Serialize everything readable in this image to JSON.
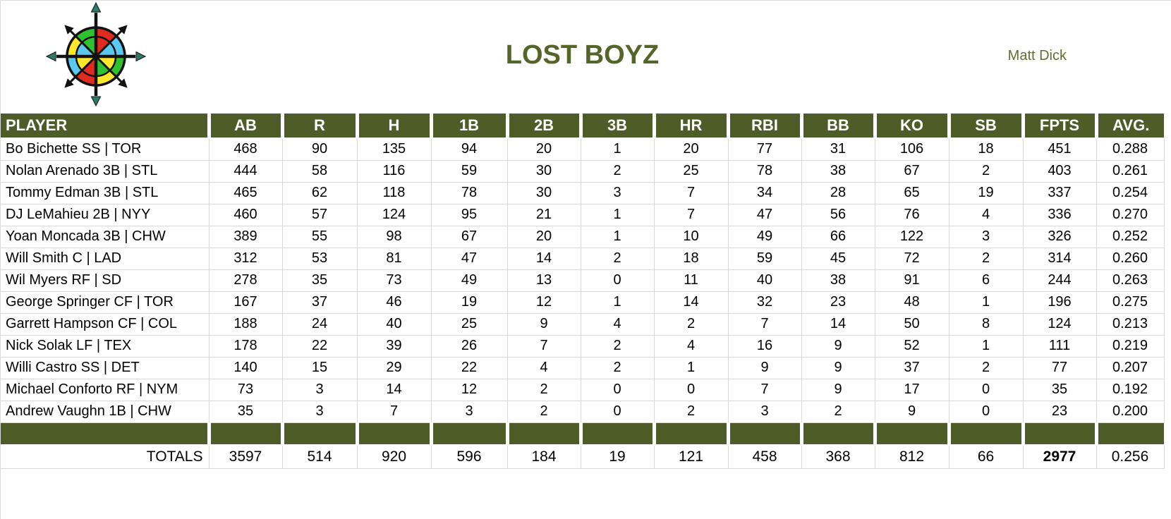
{
  "page": {
    "title": "LOST BOYZ",
    "owner": "Matt Dick"
  },
  "logo": {
    "icon": "compass-rose",
    "outer_ring_colors": [
      "#e02b20",
      "#5bc8f0",
      "#2fc12f",
      "#ffe729",
      "#e02b20",
      "#5bc8f0",
      "#ffe729",
      "#2fc12f"
    ],
    "inner_wheel_colors": [
      "#e02b20",
      "#5bc8f0",
      "#ffe729",
      "#2fc12f",
      "#e02b20",
      "#ffe729",
      "#5bc8f0",
      "#2fc12f"
    ],
    "cardinal_arrowhead_color": "#2c7a68",
    "outline_color": "#111111"
  },
  "table": {
    "columns": [
      "PLAYER",
      "AB",
      "R",
      "H",
      "1B",
      "2B",
      "3B",
      "HR",
      "RBI",
      "BB",
      "KO",
      "SB",
      "FPTS",
      "AVG."
    ],
    "rows": [
      {
        "player": "Bo Bichette SS | TOR",
        "stats": [
          468,
          90,
          135,
          94,
          20,
          1,
          20,
          77,
          31,
          106,
          18,
          451,
          "0.288"
        ]
      },
      {
        "player": "Nolan Arenado 3B | STL",
        "stats": [
          444,
          58,
          116,
          59,
          30,
          2,
          25,
          78,
          38,
          67,
          2,
          403,
          "0.261"
        ]
      },
      {
        "player": "Tommy Edman 3B | STL",
        "stats": [
          465,
          62,
          118,
          78,
          30,
          3,
          7,
          34,
          28,
          65,
          19,
          337,
          "0.254"
        ]
      },
      {
        "player": "DJ LeMahieu 2B | NYY",
        "stats": [
          460,
          57,
          124,
          95,
          21,
          1,
          7,
          47,
          56,
          76,
          4,
          336,
          "0.270"
        ]
      },
      {
        "player": "Yoan Moncada 3B | CHW",
        "stats": [
          389,
          55,
          98,
          67,
          20,
          1,
          10,
          49,
          66,
          122,
          3,
          326,
          "0.252"
        ]
      },
      {
        "player": "Will Smith C | LAD",
        "stats": [
          312,
          53,
          81,
          47,
          14,
          2,
          18,
          59,
          45,
          72,
          2,
          314,
          "0.260"
        ]
      },
      {
        "player": "Wil Myers RF | SD",
        "stats": [
          278,
          35,
          73,
          49,
          13,
          0,
          11,
          40,
          38,
          91,
          6,
          244,
          "0.263"
        ]
      },
      {
        "player": "George Springer CF | TOR",
        "stats": [
          167,
          37,
          46,
          19,
          12,
          1,
          14,
          32,
          23,
          48,
          1,
          196,
          "0.275"
        ]
      },
      {
        "player": "Garrett Hampson CF | COL",
        "stats": [
          188,
          24,
          40,
          25,
          9,
          4,
          2,
          7,
          14,
          50,
          8,
          124,
          "0.213"
        ]
      },
      {
        "player": "Nick Solak LF | TEX",
        "stats": [
          178,
          22,
          39,
          26,
          7,
          2,
          4,
          16,
          9,
          52,
          1,
          111,
          "0.219"
        ]
      },
      {
        "player": "Willi Castro SS | DET",
        "stats": [
          140,
          15,
          29,
          22,
          4,
          2,
          1,
          9,
          9,
          37,
          2,
          77,
          "0.207"
        ]
      },
      {
        "player": "Michael Conforto RF | NYM",
        "stats": [
          73,
          3,
          14,
          12,
          2,
          0,
          0,
          7,
          9,
          17,
          0,
          35,
          "0.192"
        ]
      },
      {
        "player": "Andrew Vaughn 1B | CHW",
        "stats": [
          35,
          3,
          7,
          3,
          2,
          0,
          2,
          3,
          2,
          9,
          0,
          23,
          "0.200"
        ]
      }
    ],
    "totals_label": "TOTALS",
    "totals": [
      3597,
      514,
      920,
      596,
      184,
      19,
      121,
      458,
      368,
      812,
      66,
      2977,
      "0.256"
    ],
    "bold_total_column": "FPTS"
  },
  "colors": {
    "header_bg": "#4e5c28",
    "title_text": "#55652a",
    "owner_text": "#5f6f33",
    "grid_line": "#d9d9d9",
    "body_text": "#000000"
  }
}
